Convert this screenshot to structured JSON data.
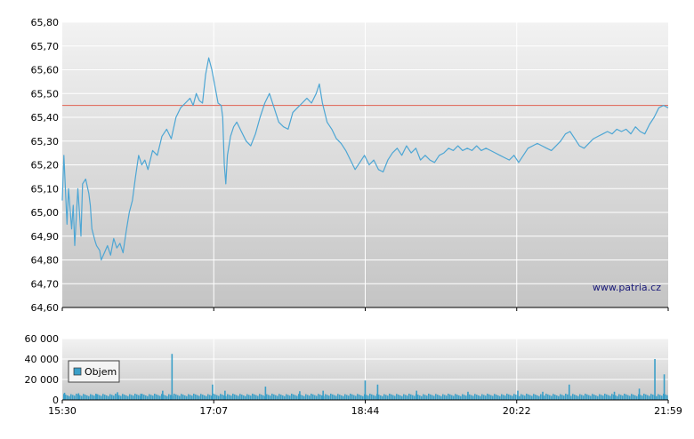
{
  "watermark": "www.patria.cz",
  "colors": {
    "price_line": "#4da6d4",
    "reference_line": "#e06050",
    "volume_fill": "#3a9fc8",
    "grid": "#ffffff",
    "plot_bg_top": "#f2f2f2",
    "plot_bg_bottom": "#c4c4c4"
  },
  "chart_data": [
    {
      "type": "line",
      "name": "price",
      "ylim": [
        64.6,
        65.8
      ],
      "y_ticks": [
        "64,60",
        "64,70",
        "64,80",
        "64,90",
        "65,00",
        "65,10",
        "65,20",
        "65,30",
        "65,40",
        "65,50",
        "65,60",
        "65,70",
        "65,80"
      ],
      "x_time_range": [
        "15:30",
        "21:59"
      ],
      "x_tick_labels": [
        "15:30",
        "17:07",
        "18:44",
        "20:22",
        "21:59"
      ],
      "reference_value": 65.45,
      "grid": true,
      "points": [
        [
          "15:30",
          65.05
        ],
        [
          "15:31",
          65.24
        ],
        [
          "15:33",
          64.95
        ],
        [
          "15:34",
          65.1
        ],
        [
          "15:36",
          64.93
        ],
        [
          "15:37",
          65.03
        ],
        [
          "15:38",
          64.86
        ],
        [
          "15:40",
          65.1
        ],
        [
          "15:42",
          64.9
        ],
        [
          "15:43",
          65.12
        ],
        [
          "15:45",
          65.14
        ],
        [
          "15:47",
          65.08
        ],
        [
          "15:48",
          65.03
        ],
        [
          "15:49",
          64.93
        ],
        [
          "15:51",
          64.88
        ],
        [
          "15:52",
          64.86
        ],
        [
          "15:54",
          64.84
        ],
        [
          "15:55",
          64.8
        ],
        [
          "15:57",
          64.83
        ],
        [
          "15:59",
          64.86
        ],
        [
          "16:01",
          64.82
        ],
        [
          "16:03",
          64.89
        ],
        [
          "16:05",
          64.85
        ],
        [
          "16:07",
          64.87
        ],
        [
          "16:09",
          64.83
        ],
        [
          "16:11",
          64.92
        ],
        [
          "16:13",
          65.0
        ],
        [
          "16:15",
          65.05
        ],
        [
          "16:17",
          65.15
        ],
        [
          "16:19",
          65.24
        ],
        [
          "16:21",
          65.2
        ],
        [
          "16:23",
          65.22
        ],
        [
          "16:25",
          65.18
        ],
        [
          "16:28",
          65.26
        ],
        [
          "16:31",
          65.24
        ],
        [
          "16:34",
          65.32
        ],
        [
          "16:37",
          65.35
        ],
        [
          "16:40",
          65.31
        ],
        [
          "16:43",
          65.4
        ],
        [
          "16:46",
          65.44
        ],
        [
          "16:49",
          65.46
        ],
        [
          "16:52",
          65.48
        ],
        [
          "16:54",
          65.45
        ],
        [
          "16:56",
          65.5
        ],
        [
          "16:58",
          65.47
        ],
        [
          "17:00",
          65.46
        ],
        [
          "17:02",
          65.58
        ],
        [
          "17:04",
          65.65
        ],
        [
          "17:06",
          65.6
        ],
        [
          "17:08",
          65.53
        ],
        [
          "17:10",
          65.46
        ],
        [
          "17:12",
          65.45
        ],
        [
          "17:13",
          65.4
        ],
        [
          "17:14",
          65.2
        ],
        [
          "17:15",
          65.12
        ],
        [
          "17:16",
          65.24
        ],
        [
          "17:18",
          65.32
        ],
        [
          "17:20",
          65.36
        ],
        [
          "17:22",
          65.38
        ],
        [
          "17:25",
          65.34
        ],
        [
          "17:28",
          65.3
        ],
        [
          "17:31",
          65.28
        ],
        [
          "17:34",
          65.33
        ],
        [
          "17:37",
          65.4
        ],
        [
          "17:40",
          65.46
        ],
        [
          "17:43",
          65.5
        ],
        [
          "17:46",
          65.44
        ],
        [
          "17:49",
          65.38
        ],
        [
          "17:52",
          65.36
        ],
        [
          "17:55",
          65.35
        ],
        [
          "17:58",
          65.42
        ],
        [
          "18:01",
          65.44
        ],
        [
          "18:04",
          65.46
        ],
        [
          "18:07",
          65.48
        ],
        [
          "18:10",
          65.46
        ],
        [
          "18:13",
          65.5
        ],
        [
          "18:15",
          65.54
        ],
        [
          "18:17",
          65.46
        ],
        [
          "18:20",
          65.38
        ],
        [
          "18:23",
          65.35
        ],
        [
          "18:26",
          65.31
        ],
        [
          "18:29",
          65.29
        ],
        [
          "18:32",
          65.26
        ],
        [
          "18:35",
          65.22
        ],
        [
          "18:38",
          65.18
        ],
        [
          "18:41",
          65.21
        ],
        [
          "18:44",
          65.24
        ],
        [
          "18:47",
          65.2
        ],
        [
          "18:50",
          65.22
        ],
        [
          "18:53",
          65.18
        ],
        [
          "18:56",
          65.17
        ],
        [
          "18:59",
          65.22
        ],
        [
          "19:02",
          65.25
        ],
        [
          "19:05",
          65.27
        ],
        [
          "19:08",
          65.24
        ],
        [
          "19:11",
          65.28
        ],
        [
          "19:14",
          65.25
        ],
        [
          "19:17",
          65.27
        ],
        [
          "19:20",
          65.22
        ],
        [
          "19:23",
          65.24
        ],
        [
          "19:26",
          65.22
        ],
        [
          "19:29",
          65.21
        ],
        [
          "19:32",
          65.24
        ],
        [
          "19:35",
          65.25
        ],
        [
          "19:38",
          65.27
        ],
        [
          "19:41",
          65.26
        ],
        [
          "19:44",
          65.28
        ],
        [
          "19:47",
          65.26
        ],
        [
          "19:50",
          65.27
        ],
        [
          "19:53",
          65.26
        ],
        [
          "19:56",
          65.28
        ],
        [
          "19:59",
          65.26
        ],
        [
          "20:02",
          65.27
        ],
        [
          "20:05",
          65.26
        ],
        [
          "20:08",
          65.25
        ],
        [
          "20:11",
          65.24
        ],
        [
          "20:14",
          65.23
        ],
        [
          "20:17",
          65.22
        ],
        [
          "20:20",
          65.24
        ],
        [
          "20:23",
          65.21
        ],
        [
          "20:26",
          65.24
        ],
        [
          "20:29",
          65.27
        ],
        [
          "20:32",
          65.28
        ],
        [
          "20:35",
          65.29
        ],
        [
          "20:38",
          65.28
        ],
        [
          "20:41",
          65.27
        ],
        [
          "20:44",
          65.26
        ],
        [
          "20:47",
          65.28
        ],
        [
          "20:50",
          65.3
        ],
        [
          "20:53",
          65.33
        ],
        [
          "20:56",
          65.34
        ],
        [
          "20:59",
          65.31
        ],
        [
          "21:02",
          65.28
        ],
        [
          "21:05",
          65.27
        ],
        [
          "21:08",
          65.29
        ],
        [
          "21:11",
          65.31
        ],
        [
          "21:14",
          65.32
        ],
        [
          "21:17",
          65.33
        ],
        [
          "21:20",
          65.34
        ],
        [
          "21:23",
          65.33
        ],
        [
          "21:26",
          65.35
        ],
        [
          "21:29",
          65.34
        ],
        [
          "21:32",
          65.35
        ],
        [
          "21:35",
          65.33
        ],
        [
          "21:38",
          65.36
        ],
        [
          "21:41",
          65.34
        ],
        [
          "21:44",
          65.33
        ],
        [
          "21:47",
          65.37
        ],
        [
          "21:50",
          65.4
        ],
        [
          "21:53",
          65.44
        ],
        [
          "21:56",
          65.45
        ],
        [
          "21:59",
          65.44
        ]
      ]
    },
    {
      "type": "bar",
      "name": "Objem",
      "ylim": [
        0,
        60000
      ],
      "y_ticks": [
        "0",
        "20 000",
        "40 000",
        "60 000"
      ],
      "x_tick_labels": [
        "15:30",
        "17:07",
        "18:44",
        "20:22",
        "21:59"
      ],
      "legend": {
        "label": "Objem",
        "placement": "bottom-left"
      },
      "baseline_volume": 5000,
      "spikes": [
        [
          "15:31",
          7000
        ],
        [
          "15:40",
          6500
        ],
        [
          "15:52",
          5500
        ],
        [
          "16:05",
          7500
        ],
        [
          "16:20",
          6000
        ],
        [
          "16:34",
          9000
        ],
        [
          "16:40",
          45000
        ],
        [
          "17:06",
          15000
        ],
        [
          "17:14",
          9000
        ],
        [
          "17:40",
          13000
        ],
        [
          "18:02",
          8500
        ],
        [
          "18:17",
          9000
        ],
        [
          "18:44",
          19000
        ],
        [
          "18:52",
          15000
        ],
        [
          "19:17",
          9000
        ],
        [
          "19:50",
          8000
        ],
        [
          "20:22",
          9000
        ],
        [
          "20:38",
          8000
        ],
        [
          "20:55",
          15000
        ],
        [
          "21:24",
          8000
        ],
        [
          "21:40",
          11000
        ],
        [
          "21:50",
          40000
        ],
        [
          "21:56",
          25000
        ]
      ]
    }
  ]
}
